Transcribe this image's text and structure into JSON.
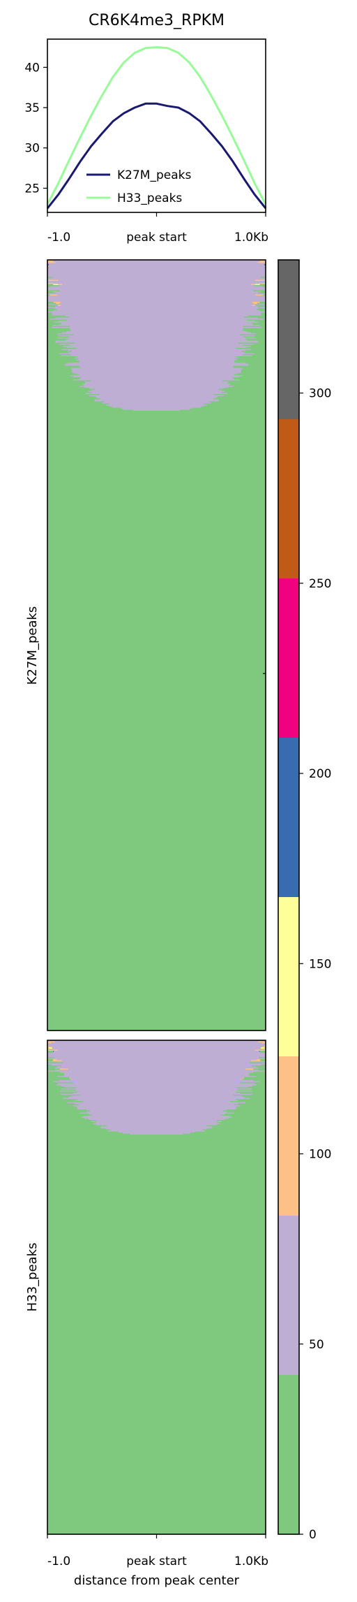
{
  "title": "CR6K4me3_RPKM",
  "colors": {
    "k27m": "#191970",
    "h33": "#98fb98",
    "palette": [
      "#7fc97f",
      "#beaed4",
      "#fdc086",
      "#ffff99",
      "#386cb0",
      "#f0027f",
      "#bf5b17",
      "#666666"
    ]
  },
  "chart_data": [
    {
      "type": "line",
      "title": "CR6K4me3_RPKM",
      "x_ticks": [
        "-1.0",
        "peak start",
        "1.0Kb"
      ],
      "ylim": [
        22,
        43.5
      ],
      "y_ticks": [
        25,
        30,
        35,
        40
      ],
      "legend_position": "lower-center",
      "x": [
        -1.0,
        -0.9,
        -0.8,
        -0.7,
        -0.6,
        -0.5,
        -0.4,
        -0.3,
        -0.2,
        -0.1,
        0.0,
        0.1,
        0.2,
        0.3,
        0.4,
        0.5,
        0.6,
        0.7,
        0.8,
        0.9,
        1.0
      ],
      "series": [
        {
          "name": "K27M_peaks",
          "values": [
            22.5,
            24.2,
            26.2,
            28.3,
            30.2,
            31.8,
            33.3,
            34.3,
            35.0,
            35.5,
            35.5,
            35.2,
            35.0,
            34.3,
            33.3,
            31.8,
            30.2,
            28.3,
            26.2,
            24.2,
            22.5
          ]
        },
        {
          "name": "H33_peaks",
          "values": [
            23.0,
            25.6,
            28.5,
            31.3,
            34.0,
            36.5,
            38.8,
            40.6,
            41.8,
            42.4,
            42.5,
            42.4,
            41.8,
            40.6,
            38.8,
            36.5,
            34.0,
            31.3,
            28.5,
            25.6,
            23.0
          ]
        }
      ]
    },
    {
      "type": "heatmap",
      "groups": [
        "K27M_peaks",
        "H33_peaks"
      ],
      "x_ticks": [
        "-1.0",
        "peak start",
        "1.0Kb"
      ],
      "xlabel": "distance from peak center",
      "color_scale": {
        "min": 0,
        "max": 335,
        "ticks": [
          0,
          50,
          100,
          150,
          200,
          250,
          300
        ],
        "bins": 8
      }
    }
  ]
}
